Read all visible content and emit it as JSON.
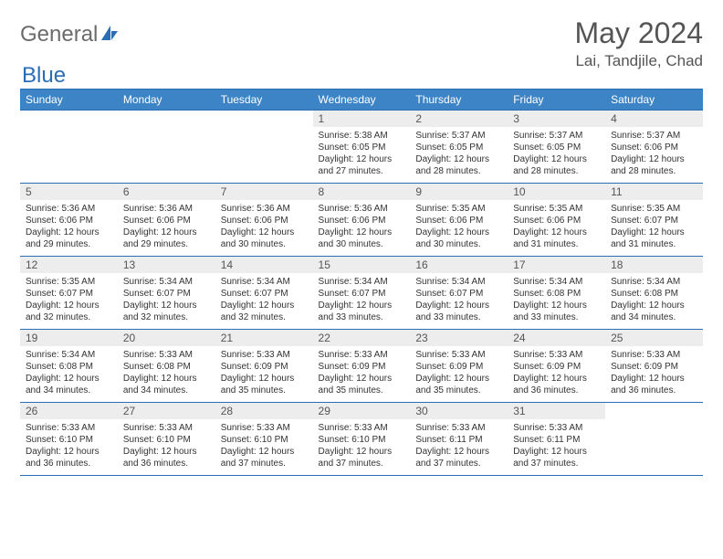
{
  "logo": {
    "general": "General",
    "blue": "Blue"
  },
  "title": "May 2024",
  "location": "Lai, Tandjile, Chad",
  "colors": {
    "header_bg": "#3d84c6",
    "border": "#2a6db5",
    "daynum_bg": "#ededed",
    "text": "#333333",
    "title": "#555555"
  },
  "dayHeaders": [
    "Sunday",
    "Monday",
    "Tuesday",
    "Wednesday",
    "Thursday",
    "Friday",
    "Saturday"
  ],
  "weeks": [
    [
      {
        "num": "",
        "lines": []
      },
      {
        "num": "",
        "lines": []
      },
      {
        "num": "",
        "lines": []
      },
      {
        "num": "1",
        "lines": [
          "Sunrise: 5:38 AM",
          "Sunset: 6:05 PM",
          "Daylight: 12 hours",
          "and 27 minutes."
        ]
      },
      {
        "num": "2",
        "lines": [
          "Sunrise: 5:37 AM",
          "Sunset: 6:05 PM",
          "Daylight: 12 hours",
          "and 28 minutes."
        ]
      },
      {
        "num": "3",
        "lines": [
          "Sunrise: 5:37 AM",
          "Sunset: 6:05 PM",
          "Daylight: 12 hours",
          "and 28 minutes."
        ]
      },
      {
        "num": "4",
        "lines": [
          "Sunrise: 5:37 AM",
          "Sunset: 6:06 PM",
          "Daylight: 12 hours",
          "and 28 minutes."
        ]
      }
    ],
    [
      {
        "num": "5",
        "lines": [
          "Sunrise: 5:36 AM",
          "Sunset: 6:06 PM",
          "Daylight: 12 hours",
          "and 29 minutes."
        ]
      },
      {
        "num": "6",
        "lines": [
          "Sunrise: 5:36 AM",
          "Sunset: 6:06 PM",
          "Daylight: 12 hours",
          "and 29 minutes."
        ]
      },
      {
        "num": "7",
        "lines": [
          "Sunrise: 5:36 AM",
          "Sunset: 6:06 PM",
          "Daylight: 12 hours",
          "and 30 minutes."
        ]
      },
      {
        "num": "8",
        "lines": [
          "Sunrise: 5:36 AM",
          "Sunset: 6:06 PM",
          "Daylight: 12 hours",
          "and 30 minutes."
        ]
      },
      {
        "num": "9",
        "lines": [
          "Sunrise: 5:35 AM",
          "Sunset: 6:06 PM",
          "Daylight: 12 hours",
          "and 30 minutes."
        ]
      },
      {
        "num": "10",
        "lines": [
          "Sunrise: 5:35 AM",
          "Sunset: 6:06 PM",
          "Daylight: 12 hours",
          "and 31 minutes."
        ]
      },
      {
        "num": "11",
        "lines": [
          "Sunrise: 5:35 AM",
          "Sunset: 6:07 PM",
          "Daylight: 12 hours",
          "and 31 minutes."
        ]
      }
    ],
    [
      {
        "num": "12",
        "lines": [
          "Sunrise: 5:35 AM",
          "Sunset: 6:07 PM",
          "Daylight: 12 hours",
          "and 32 minutes."
        ]
      },
      {
        "num": "13",
        "lines": [
          "Sunrise: 5:34 AM",
          "Sunset: 6:07 PM",
          "Daylight: 12 hours",
          "and 32 minutes."
        ]
      },
      {
        "num": "14",
        "lines": [
          "Sunrise: 5:34 AM",
          "Sunset: 6:07 PM",
          "Daylight: 12 hours",
          "and 32 minutes."
        ]
      },
      {
        "num": "15",
        "lines": [
          "Sunrise: 5:34 AM",
          "Sunset: 6:07 PM",
          "Daylight: 12 hours",
          "and 33 minutes."
        ]
      },
      {
        "num": "16",
        "lines": [
          "Sunrise: 5:34 AM",
          "Sunset: 6:07 PM",
          "Daylight: 12 hours",
          "and 33 minutes."
        ]
      },
      {
        "num": "17",
        "lines": [
          "Sunrise: 5:34 AM",
          "Sunset: 6:08 PM",
          "Daylight: 12 hours",
          "and 33 minutes."
        ]
      },
      {
        "num": "18",
        "lines": [
          "Sunrise: 5:34 AM",
          "Sunset: 6:08 PM",
          "Daylight: 12 hours",
          "and 34 minutes."
        ]
      }
    ],
    [
      {
        "num": "19",
        "lines": [
          "Sunrise: 5:34 AM",
          "Sunset: 6:08 PM",
          "Daylight: 12 hours",
          "and 34 minutes."
        ]
      },
      {
        "num": "20",
        "lines": [
          "Sunrise: 5:33 AM",
          "Sunset: 6:08 PM",
          "Daylight: 12 hours",
          "and 34 minutes."
        ]
      },
      {
        "num": "21",
        "lines": [
          "Sunrise: 5:33 AM",
          "Sunset: 6:09 PM",
          "Daylight: 12 hours",
          "and 35 minutes."
        ]
      },
      {
        "num": "22",
        "lines": [
          "Sunrise: 5:33 AM",
          "Sunset: 6:09 PM",
          "Daylight: 12 hours",
          "and 35 minutes."
        ]
      },
      {
        "num": "23",
        "lines": [
          "Sunrise: 5:33 AM",
          "Sunset: 6:09 PM",
          "Daylight: 12 hours",
          "and 35 minutes."
        ]
      },
      {
        "num": "24",
        "lines": [
          "Sunrise: 5:33 AM",
          "Sunset: 6:09 PM",
          "Daylight: 12 hours",
          "and 36 minutes."
        ]
      },
      {
        "num": "25",
        "lines": [
          "Sunrise: 5:33 AM",
          "Sunset: 6:09 PM",
          "Daylight: 12 hours",
          "and 36 minutes."
        ]
      }
    ],
    [
      {
        "num": "26",
        "lines": [
          "Sunrise: 5:33 AM",
          "Sunset: 6:10 PM",
          "Daylight: 12 hours",
          "and 36 minutes."
        ]
      },
      {
        "num": "27",
        "lines": [
          "Sunrise: 5:33 AM",
          "Sunset: 6:10 PM",
          "Daylight: 12 hours",
          "and 36 minutes."
        ]
      },
      {
        "num": "28",
        "lines": [
          "Sunrise: 5:33 AM",
          "Sunset: 6:10 PM",
          "Daylight: 12 hours",
          "and 37 minutes."
        ]
      },
      {
        "num": "29",
        "lines": [
          "Sunrise: 5:33 AM",
          "Sunset: 6:10 PM",
          "Daylight: 12 hours",
          "and 37 minutes."
        ]
      },
      {
        "num": "30",
        "lines": [
          "Sunrise: 5:33 AM",
          "Sunset: 6:11 PM",
          "Daylight: 12 hours",
          "and 37 minutes."
        ]
      },
      {
        "num": "31",
        "lines": [
          "Sunrise: 5:33 AM",
          "Sunset: 6:11 PM",
          "Daylight: 12 hours",
          "and 37 minutes."
        ]
      },
      {
        "num": "",
        "lines": []
      }
    ]
  ]
}
